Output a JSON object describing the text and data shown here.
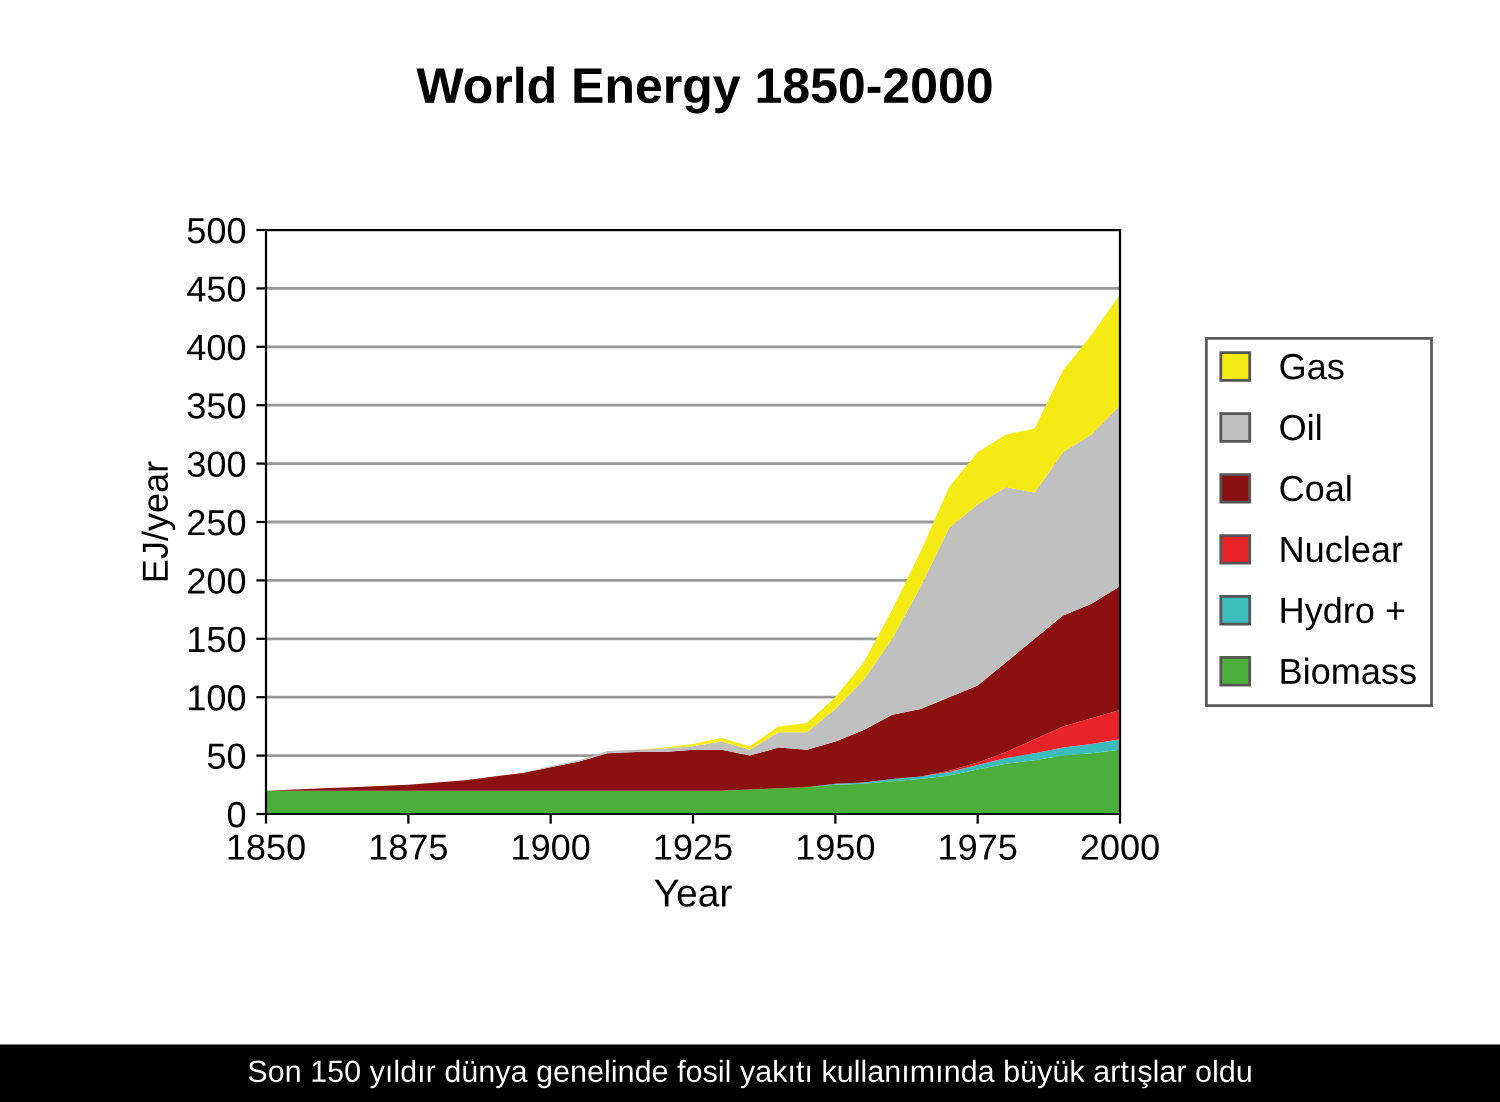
{
  "chart_data": {
    "type": "area",
    "stacked": true,
    "title": "World Energy 1850-2000",
    "xlabel": "Year",
    "ylabel": "EJ/year",
    "x": [
      1850,
      1855,
      1860,
      1865,
      1870,
      1875,
      1880,
      1885,
      1890,
      1895,
      1900,
      1905,
      1910,
      1915,
      1920,
      1925,
      1930,
      1935,
      1940,
      1945,
      1950,
      1955,
      1960,
      1965,
      1970,
      1975,
      1980,
      1985,
      1990,
      1995,
      2000
    ],
    "series": [
      {
        "name": "Biomass",
        "color": "#4caf3c",
        "values": [
          20,
          20,
          20,
          20,
          20,
          20,
          20,
          20,
          20,
          20,
          20,
          20,
          20,
          20,
          20,
          20,
          20,
          21,
          22,
          23,
          25,
          26,
          28,
          30,
          33,
          38,
          43,
          46,
          50,
          52,
          55
        ]
      },
      {
        "name": "Hydro +",
        "color": "#3cbcbc",
        "values": [
          0,
          0,
          0,
          0,
          0,
          0,
          0,
          0,
          0,
          0,
          0,
          0,
          0,
          0,
          0,
          0,
          0,
          0,
          0,
          0,
          1,
          1,
          2,
          2,
          3,
          4,
          5,
          6,
          7,
          8,
          9
        ]
      },
      {
        "name": "Nuclear",
        "color": "#e8232a",
        "values": [
          0,
          0,
          0,
          0,
          0,
          0,
          0,
          0,
          0,
          0,
          0,
          0,
          0,
          0,
          0,
          0,
          0,
          0,
          0,
          0,
          0,
          0,
          0,
          0,
          1,
          2,
          5,
          12,
          18,
          22,
          25
        ]
      },
      {
        "name": "Coal",
        "color": "#8b1010",
        "values": [
          0,
          1,
          2,
          3,
          4,
          5,
          7,
          9,
          12,
          15,
          20,
          25,
          32,
          33,
          33,
          35,
          35,
          29,
          35,
          32,
          36,
          45,
          55,
          58,
          63,
          66,
          77,
          86,
          95,
          98,
          106
        ]
      },
      {
        "name": "Oil",
        "color": "#c0c0c0",
        "values": [
          0,
          0,
          0,
          0,
          0,
          0,
          0,
          0,
          0,
          0,
          1,
          1,
          2,
          2,
          3,
          3,
          7,
          5,
          13,
          15,
          28,
          43,
          65,
          105,
          145,
          155,
          150,
          125,
          140,
          145,
          155
        ]
      },
      {
        "name": "Gas",
        "color": "#f5ea14",
        "values": [
          0,
          0,
          0,
          0,
          0,
          0,
          0,
          0,
          0,
          0,
          0,
          0,
          0,
          0,
          1,
          2,
          3,
          3,
          5,
          8,
          10,
          15,
          25,
          30,
          35,
          45,
          45,
          55,
          70,
          85,
          95
        ]
      }
    ],
    "xlim": [
      1850,
      2000
    ],
    "xticks": [
      1850,
      1875,
      1900,
      1925,
      1950,
      1975,
      2000
    ],
    "ylim": [
      0,
      500
    ],
    "yticks": [
      0,
      50,
      100,
      150,
      200,
      250,
      300,
      350,
      400,
      450,
      500
    ],
    "grid": "y",
    "legend": "right",
    "annotations": [
      "Son 150 yıldır dünya genelinde fosil yakıtı kullanımında büyük artışlar oldu"
    ]
  }
}
